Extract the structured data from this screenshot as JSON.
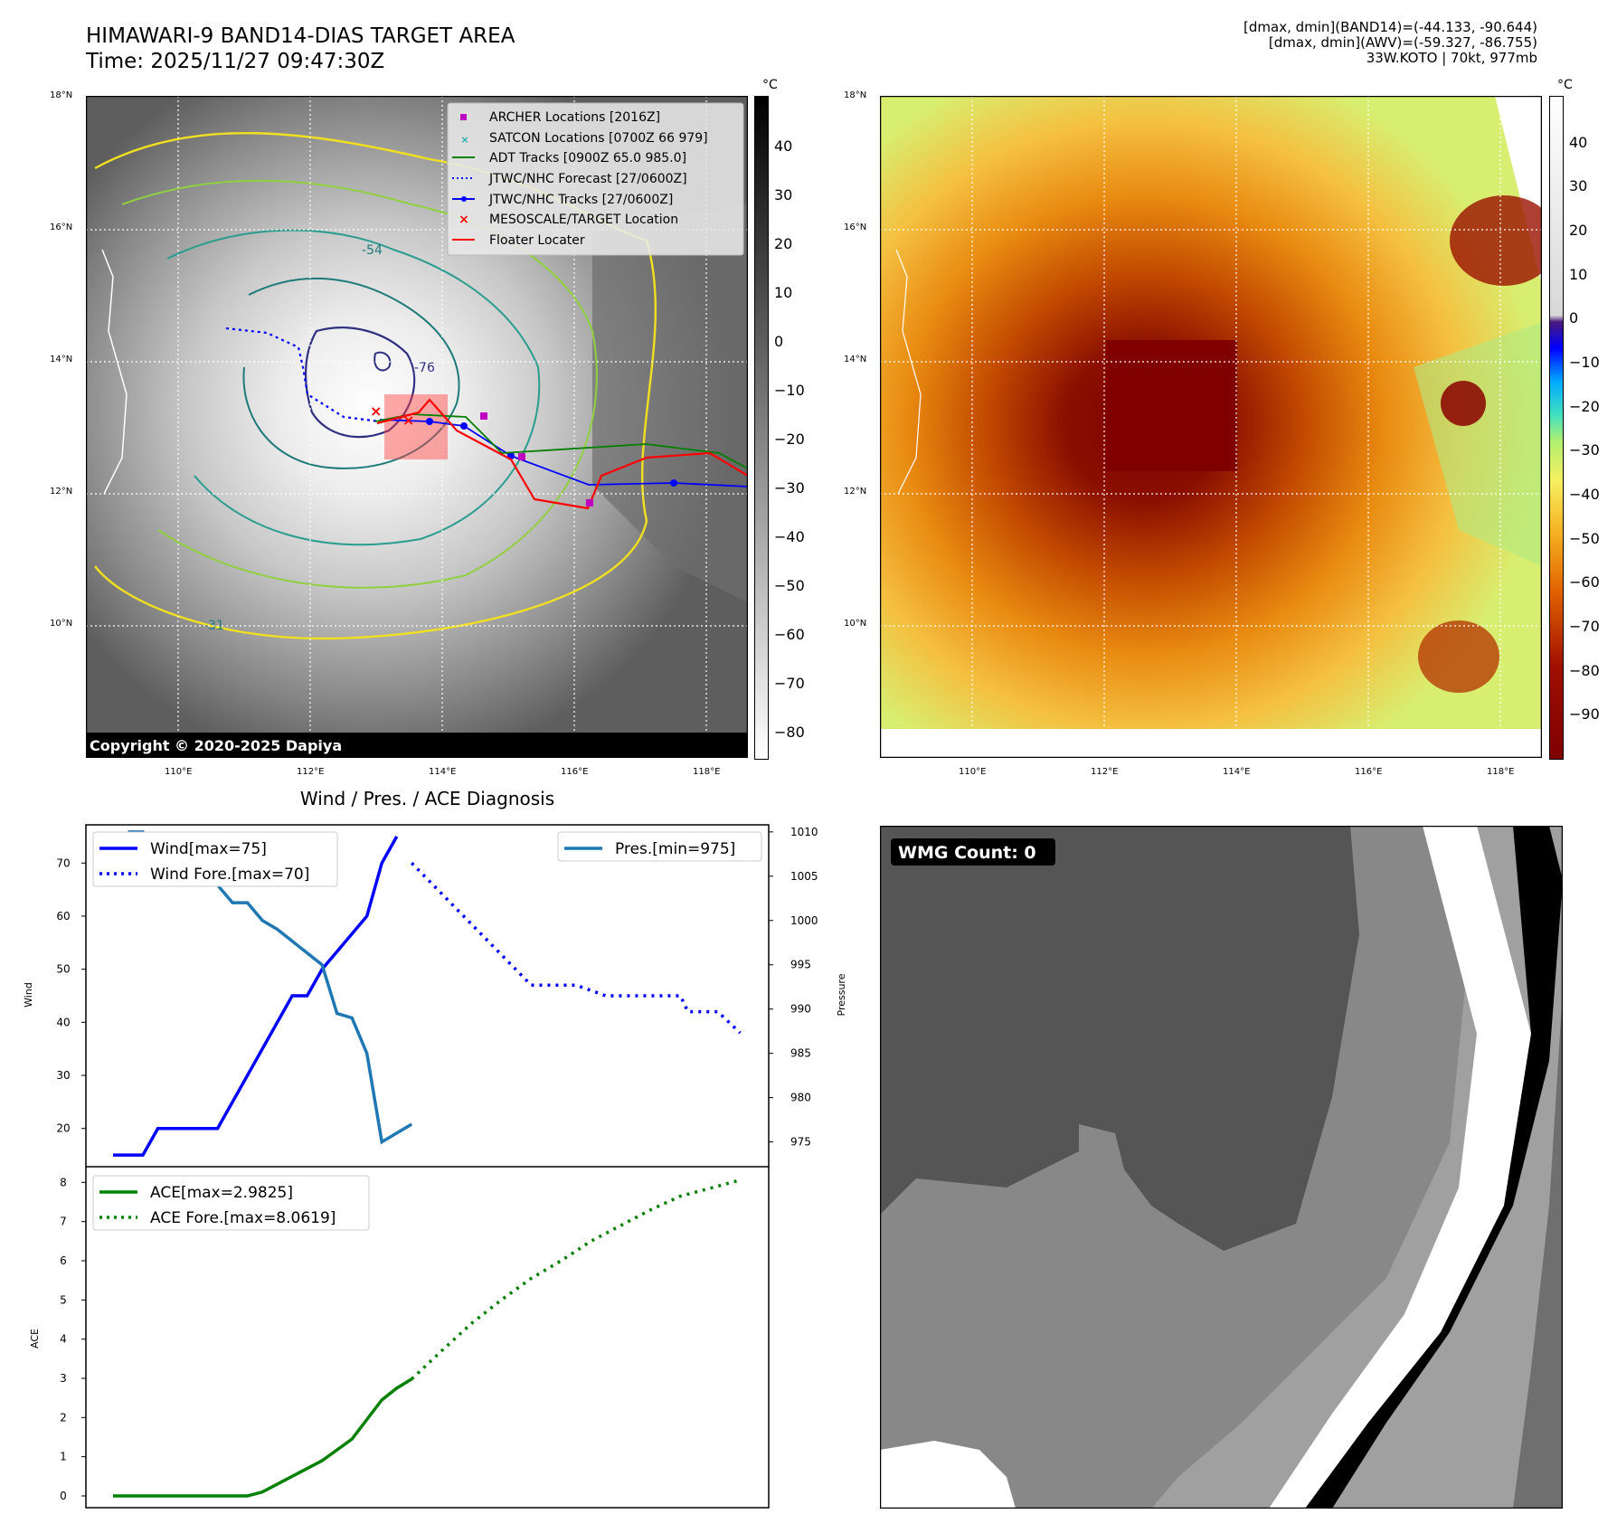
{
  "header": {
    "title_line1": "HIMAWARI-9 BAND14-DIAS TARGET AREA",
    "title_line2": "Time: 2025/11/27 09:47:30Z",
    "info_line1": "[dmax, dmin](BAND14)=(-44.133, -90.644)",
    "info_line2": "[dmax, dmin](AWV)=(-59.327, -86.755)",
    "info_line3": "33W.KOTO | 70kt, 977mb"
  },
  "map": {
    "lat_labels": [
      "18°N",
      "16°N",
      "14°N",
      "12°N",
      "10°N"
    ],
    "lon_labels": [
      "110°E",
      "112°E",
      "114°E",
      "116°E",
      "118°E"
    ],
    "copyright": "Copyright © 2020-2025 Dapiya",
    "contour_labels": [
      "-31",
      "-54",
      "-76"
    ],
    "legend": [
      {
        "label": "ARCHER Locations [2016Z]",
        "color": "#c000c0"
      },
      {
        "label": "SATCON Locations [0700Z 66 979]",
        "color": "#17b0a8"
      },
      {
        "label": "ADT Tracks [0900Z 65.0 985.0]",
        "color": "#008000"
      },
      {
        "label": "JTWC/NHC Forecast [27/0600Z]",
        "color": "#0000ff"
      },
      {
        "label": "JTWC/NHC Tracks [27/0600Z]",
        "color": "#0000ff"
      },
      {
        "label": "MESOSCALE/TARGET Location",
        "color": "#ff0000"
      },
      {
        "label": "Floater Locater",
        "color": "#ff0000"
      }
    ]
  },
  "colorbar_left": {
    "unit": "°C",
    "ticks": [
      "40",
      "30",
      "20",
      "10",
      "0",
      "−10",
      "−20",
      "−30",
      "−40",
      "−50",
      "−60",
      "−70",
      "−80"
    ]
  },
  "colorbar_right": {
    "unit": "°C",
    "ticks": [
      "40",
      "30",
      "20",
      "10",
      "0",
      "−10",
      "−20",
      "−30",
      "−40",
      "−50",
      "−60",
      "−70",
      "−80",
      "−90"
    ]
  },
  "wmg": {
    "label": "WMG Count: 0"
  },
  "colors": {
    "wind": "#0000ff",
    "pres": "#1f77b4",
    "ace": "#008000"
  },
  "chart_data": [
    {
      "type": "line",
      "title": "Wind / Pres. / ACE Diagnosis",
      "ylabel": "Wind",
      "y2label": "Pressure",
      "ylim": [
        12.8,
        77.2
      ],
      "y2lim": [
        972.2,
        1010.8
      ],
      "yticks": [
        20,
        30,
        40,
        50,
        60,
        70
      ],
      "y2ticks": [
        975,
        980,
        985,
        990,
        995,
        1000,
        1005,
        1010
      ],
      "legend_left": [
        "Wind[max=75]",
        "Wind Fore.[max=70]"
      ],
      "legend_right": [
        "Pres.[min=975]"
      ],
      "series": [
        {
          "name": "Wind[max=75]",
          "axis": "left",
          "style": "solid",
          "x": [
            0,
            2,
            3,
            5,
            7,
            10,
            12,
            13,
            14,
            17,
            18,
            19
          ],
          "values": [
            15,
            15,
            20,
            20,
            20,
            35,
            45,
            45,
            50,
            60,
            70,
            75
          ]
        },
        {
          "name": "Wind Fore.[max=70]",
          "axis": "left",
          "style": "dotted",
          "x": [
            20,
            28,
            29,
            31,
            33,
            34,
            36,
            38,
            38.5,
            40,
            40.5,
            42
          ],
          "values": [
            70,
            47,
            47,
            47,
            45,
            45,
            45,
            45,
            42,
            42,
            42,
            38
          ]
        },
        {
          "name": "Pres.[min=975]",
          "axis": "right",
          "style": "solid",
          "x": [
            1,
            2,
            5,
            7,
            8,
            9,
            10,
            11,
            14,
            15,
            16,
            17,
            18,
            20
          ],
          "values": [
            1010,
            1010,
            1004,
            1004,
            1002,
            1002,
            1000,
            999,
            995,
            989.5,
            989,
            985,
            975,
            977
          ]
        }
      ]
    },
    {
      "type": "line",
      "ylabel": "ACE",
      "ylim": [
        -0.3,
        8.4
      ],
      "yticks": [
        0,
        1,
        2,
        3,
        4,
        5,
        6,
        7,
        8
      ],
      "legend": [
        "ACE[max=2.9825]",
        "ACE Fore.[max=8.0619]"
      ],
      "series": [
        {
          "name": "ACE[max=2.9825]",
          "style": "solid",
          "x": [
            0,
            9,
            10,
            12,
            14,
            16,
            17,
            18,
            19,
            20
          ],
          "values": [
            0,
            0,
            0.1,
            0.5,
            0.9,
            1.45,
            1.95,
            2.45,
            2.75,
            2.9825
          ]
        },
        {
          "name": "ACE Fore.[max=8.0619]",
          "style": "dotted",
          "x": [
            20,
            22,
            24,
            26,
            28,
            30,
            32,
            34,
            36,
            38,
            40,
            42
          ],
          "values": [
            2.9825,
            3.7,
            4.4,
            5.0,
            5.55,
            6.0,
            6.5,
            6.9,
            7.3,
            7.65,
            7.85,
            8.0619
          ]
        }
      ]
    }
  ]
}
